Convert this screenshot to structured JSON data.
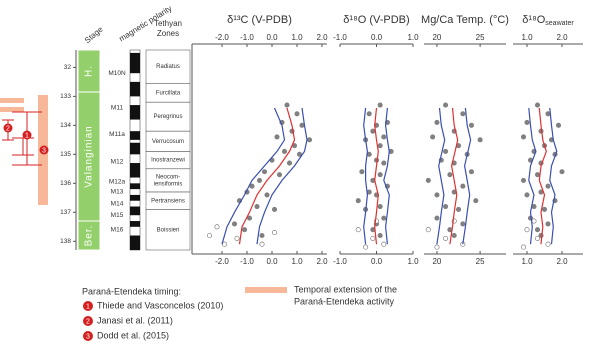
{
  "stratigraphy": {
    "stage_header": "Stage",
    "polarity_header": "magnetic polarity",
    "zones_header": [
      "Tethyan",
      "Zones"
    ],
    "ylim": [
      131.4,
      138.3
    ],
    "yticks": [
      {
        "value": 132,
        "label": "32"
      },
      133,
      134,
      135,
      136,
      137,
      138
    ],
    "stages": [
      {
        "label": "H.",
        "from": 131.4,
        "to": 132.85
      },
      {
        "label": "Valanginian",
        "from": 132.85,
        "to": 137.3
      },
      {
        "label": "Ber.",
        "from": 137.3,
        "to": 138.3
      }
    ],
    "chrons": [
      {
        "label": "M10N",
        "age": 132.2
      },
      {
        "label": "M11",
        "age": 133.4
      },
      {
        "label": "M11a",
        "age": 134.3
      },
      {
        "label": "M12",
        "age": 135.25
      },
      {
        "label": "M12a",
        "age": 135.95
      },
      {
        "label": "M13",
        "age": 136.3
      },
      {
        "label": "M14",
        "age": 136.7
      },
      {
        "label": "M15",
        "age": 137.1
      },
      {
        "label": "M16",
        "age": 137.6
      }
    ],
    "normal_intervals": [
      [
        131.5,
        132.2
      ],
      [
        132.5,
        133.0
      ],
      [
        133.3,
        133.8
      ],
      [
        134.2,
        134.5
      ],
      [
        134.6,
        135.0
      ],
      [
        135.3,
        135.8
      ],
      [
        136.0,
        136.2
      ],
      [
        136.4,
        136.6
      ],
      [
        136.8,
        137.1
      ],
      [
        137.3,
        137.5
      ],
      [
        137.8,
        138.3
      ]
    ],
    "zones": [
      {
        "label": [
          "Radiatus"
        ],
        "from": 131.4,
        "to": 132.55
      },
      {
        "label": [
          "Furcillata"
        ],
        "from": 132.55,
        "to": 133.2
      },
      {
        "label": [
          "Peregrinus"
        ],
        "from": 133.2,
        "to": 134.2
      },
      {
        "label": [
          "Verrucosum"
        ],
        "from": 134.2,
        "to": 134.9
      },
      {
        "label": [
          "Inostranzewi"
        ],
        "from": 134.9,
        "to": 135.5
      },
      {
        "label": [
          "Neocom-",
          "iensiformis"
        ],
        "from": 135.5,
        "to": 136.3
      },
      {
        "label": [
          "Pertransiens"
        ],
        "from": 136.3,
        "to": 136.9
      },
      {
        "label": [
          "Boissieri"
        ],
        "from": 136.9,
        "to": 138.3
      }
    ]
  },
  "chart_data": [
    {
      "type": "scatter",
      "title": "δ¹³C (V-PDB)",
      "xlim": [
        -3.2,
        2.2
      ],
      "ylim": [
        131.4,
        138.3
      ],
      "xticks": [
        {
          "value": -2,
          "label": "-2.0"
        },
        {
          "value": -1,
          "label": "-1.0"
        },
        {
          "value": 0,
          "label": "0.0"
        },
        {
          "value": 1,
          "label": "1.0"
        },
        {
          "value": 2,
          "label": "2.0"
        }
      ],
      "series": [
        {
          "kind": "scatter",
          "marker": "filled",
          "color": "#808080",
          "x": [
            0.6,
            1.0,
            0.4,
            1.2,
            0.8,
            0.2,
            1.5,
            0.9,
            0.5,
            1.1,
            0.0,
            0.7,
            -0.3,
            0.3,
            -0.5,
            -0.8,
            -1.0,
            -0.2,
            -1.3,
            -0.6,
            0.1,
            -0.9,
            -1.5,
            -1.1,
            -0.4
          ],
          "y": [
            133.3,
            133.6,
            133.9,
            134.0,
            134.2,
            134.4,
            134.5,
            134.7,
            134.9,
            135.0,
            135.2,
            135.3,
            135.6,
            135.7,
            135.9,
            136.1,
            136.3,
            136.4,
            136.6,
            136.8,
            136.9,
            137.2,
            137.4,
            137.6,
            137.8
          ]
        },
        {
          "kind": "scatter",
          "marker": "open",
          "color": "#808080",
          "x": [
            -2.5,
            -1.9,
            -1.4,
            -0.4,
            -2.2,
            0.1
          ],
          "y": [
            137.8,
            138.1,
            137.9,
            138.1,
            137.5,
            137.7
          ]
        },
        {
          "kind": "line",
          "color": "#3a4fb0",
          "x": [
            -2.0,
            -1.8,
            -1.5,
            -1.1,
            -0.8,
            -0.3,
            0.2,
            0.5,
            0.4,
            0.1
          ],
          "y": [
            138.1,
            137.5,
            137.0,
            136.4,
            135.9,
            135.4,
            134.9,
            134.5,
            134.0,
            133.4
          ]
        },
        {
          "kind": "line",
          "color": "#3a4fb0",
          "x": [
            -0.6,
            -0.5,
            -0.3,
            0.0,
            0.4,
            0.9,
            1.3,
            1.4,
            1.3,
            1.2
          ],
          "y": [
            138.1,
            137.5,
            137.0,
            136.4,
            135.9,
            135.4,
            134.9,
            134.5,
            134.0,
            133.4
          ]
        },
        {
          "kind": "line",
          "color": "#e03030",
          "x": [
            -1.3,
            -1.2,
            -0.9,
            -0.6,
            -0.2,
            0.3,
            0.7,
            0.9,
            0.8,
            0.6
          ],
          "y": [
            138.1,
            137.5,
            137.0,
            136.4,
            135.9,
            135.4,
            134.9,
            134.5,
            134.0,
            133.4
          ]
        }
      ]
    },
    {
      "type": "scatter",
      "title": "δ¹⁸O (V-PDB)",
      "xlim": [
        -1.0,
        1.0
      ],
      "ylim": [
        131.4,
        138.3
      ],
      "xticks": [
        {
          "value": -1,
          "label": "-1.0"
        },
        {
          "value": 0,
          "label": "0.0"
        },
        {
          "value": 1,
          "label": "1.0"
        }
      ],
      "series": [
        {
          "kind": "scatter",
          "marker": "filled",
          "color": "#808080",
          "x": [
            0.1,
            -0.2,
            0.3,
            0.0,
            -0.1,
            0.2,
            -0.3,
            0.1,
            0.4,
            -0.2,
            0.0,
            0.2,
            -0.4,
            0.1,
            -0.1,
            0.3,
            -0.2,
            0.0,
            -0.5,
            0.1,
            -0.3,
            0.2,
            0.0,
            -0.1,
            0.1
          ],
          "y": [
            133.3,
            133.6,
            133.9,
            134.0,
            134.2,
            134.4,
            134.5,
            134.7,
            134.9,
            135.0,
            135.2,
            135.3,
            135.6,
            135.7,
            135.9,
            136.1,
            136.3,
            136.4,
            136.6,
            136.8,
            136.9,
            137.2,
            137.4,
            137.6,
            137.8
          ]
        },
        {
          "kind": "scatter",
          "marker": "open",
          "color": "#808080",
          "x": [
            -0.5,
            -0.1,
            0.2,
            -0.3,
            0.0
          ],
          "y": [
            137.6,
            137.9,
            138.1,
            138.2,
            137.3
          ]
        },
        {
          "kind": "line",
          "color": "#3a4fb0",
          "x": [
            -0.3,
            -0.35,
            -0.3,
            -0.25,
            -0.3,
            -0.3,
            -0.25,
            -0.3,
            -0.35,
            -0.3
          ],
          "y": [
            138.1,
            137.5,
            137.0,
            136.4,
            135.9,
            135.4,
            134.9,
            134.5,
            134.0,
            133.4
          ]
        },
        {
          "kind": "line",
          "color": "#3a4fb0",
          "x": [
            0.3,
            0.25,
            0.3,
            0.35,
            0.2,
            0.3,
            0.35,
            0.3,
            0.25,
            0.3
          ],
          "y": [
            138.1,
            137.5,
            137.0,
            136.4,
            135.9,
            135.4,
            134.9,
            134.5,
            134.0,
            133.4
          ]
        },
        {
          "kind": "line",
          "color": "#e03030",
          "x": [
            0.0,
            -0.05,
            0.0,
            0.05,
            -0.05,
            0.0,
            0.05,
            0.0,
            -0.05,
            0.0
          ],
          "y": [
            138.1,
            137.5,
            137.0,
            136.4,
            135.9,
            135.4,
            134.9,
            134.5,
            134.0,
            133.4
          ]
        }
      ]
    },
    {
      "type": "scatter",
      "title": "Mg/Ca Temp. (°C)",
      "xlim": [
        18.5,
        28
      ],
      "ylim": [
        131.4,
        138.3
      ],
      "xticks": [
        20,
        25
      ],
      "series": [
        {
          "kind": "scatter",
          "marker": "filled",
          "color": "#808080",
          "x": [
            21,
            23,
            20,
            24,
            22,
            19.5,
            25,
            22.5,
            21,
            23.5,
            20.5,
            22,
            24,
            21.5,
            19,
            23,
            22,
            20,
            24.5,
            21,
            22.5,
            20,
            23,
            21.5,
            22
          ],
          "y": [
            133.3,
            133.6,
            133.9,
            134.0,
            134.2,
            134.4,
            134.5,
            134.7,
            134.9,
            135.0,
            135.2,
            135.3,
            135.6,
            135.7,
            135.9,
            136.1,
            136.3,
            136.4,
            136.6,
            136.8,
            136.9,
            137.2,
            137.4,
            137.6,
            137.8
          ]
        },
        {
          "kind": "scatter",
          "marker": "open",
          "color": "#808080",
          "x": [
            19,
            21,
            23,
            20,
            22
          ],
          "y": [
            137.6,
            137.9,
            138.1,
            138.2,
            137.3
          ]
        },
        {
          "kind": "line",
          "color": "#3a4fb0",
          "x": [
            20,
            20.3,
            20.5,
            20.8,
            20.5,
            20.2,
            20.6,
            20.9,
            20.5,
            20.3
          ],
          "y": [
            138.1,
            137.5,
            137.0,
            136.4,
            135.9,
            135.4,
            134.9,
            134.5,
            134.0,
            133.4
          ]
        },
        {
          "kind": "line",
          "color": "#3a4fb0",
          "x": [
            23,
            23.3,
            23.5,
            23.8,
            23.5,
            23.2,
            23.6,
            23.9,
            23.5,
            23.3
          ],
          "y": [
            138.1,
            137.5,
            137.0,
            136.4,
            135.9,
            135.4,
            134.9,
            134.5,
            134.0,
            133.4
          ]
        },
        {
          "kind": "line",
          "color": "#e03030",
          "x": [
            21.5,
            21.8,
            22,
            22.3,
            22,
            21.7,
            22.1,
            22.4,
            22,
            21.8
          ],
          "y": [
            138.1,
            137.5,
            137.0,
            136.4,
            135.9,
            135.4,
            134.9,
            134.5,
            134.0,
            133.4
          ]
        }
      ]
    },
    {
      "type": "scatter",
      "title": "δ¹⁸O",
      "title_subscript": "seawater",
      "xlim": [
        0.6,
        2.6
      ],
      "ylim": [
        131.4,
        138.3
      ],
      "xticks": [
        {
          "value": 1,
          "label": "1.0"
        },
        {
          "value": 2,
          "label": "2.0"
        }
      ],
      "series": [
        {
          "kind": "scatter",
          "marker": "filled",
          "color": "#808080",
          "x": [
            1.3,
            1.6,
            1.0,
            1.9,
            1.4,
            0.9,
            1.7,
            1.5,
            1.2,
            1.8,
            1.1,
            1.4,
            2.0,
            1.3,
            0.9,
            1.6,
            1.4,
            1.0,
            1.8,
            1.2,
            1.5,
            1.1,
            1.6,
            1.3,
            1.4
          ],
          "y": [
            133.3,
            133.6,
            133.9,
            134.0,
            134.2,
            134.4,
            134.5,
            134.7,
            134.9,
            135.0,
            135.2,
            135.3,
            135.6,
            135.7,
            135.9,
            136.1,
            136.3,
            136.4,
            136.6,
            136.8,
            136.9,
            137.2,
            137.4,
            137.6,
            137.8
          ]
        },
        {
          "kind": "scatter",
          "marker": "open",
          "color": "#808080",
          "x": [
            1.0,
            1.3,
            1.6,
            0.9,
            1.2
          ],
          "y": [
            137.6,
            137.9,
            138.1,
            138.2,
            137.3
          ]
        },
        {
          "kind": "line",
          "color": "#3a4fb0",
          "x": [
            1.1,
            1.15,
            1.1,
            1.2,
            1.05,
            1.1,
            1.25,
            1.15,
            1.1,
            1.05
          ],
          "y": [
            138.1,
            137.5,
            137.0,
            136.4,
            135.9,
            135.4,
            134.9,
            134.5,
            134.0,
            133.4
          ]
        },
        {
          "kind": "line",
          "color": "#3a4fb0",
          "x": [
            1.7,
            1.75,
            1.7,
            1.8,
            1.65,
            1.7,
            1.85,
            1.75,
            1.7,
            1.65
          ],
          "y": [
            138.1,
            137.5,
            137.0,
            136.4,
            135.9,
            135.4,
            134.9,
            134.5,
            134.0,
            133.4
          ]
        },
        {
          "kind": "line",
          "color": "#e03030",
          "x": [
            1.4,
            1.45,
            1.4,
            1.5,
            1.35,
            1.4,
            1.55,
            1.45,
            1.4,
            1.35
          ],
          "y": [
            138.1,
            137.5,
            137.0,
            136.4,
            135.9,
            135.4,
            134.9,
            134.5,
            134.0,
            133.4
          ]
        }
      ]
    }
  ],
  "legend": {
    "title": "Paraná-Etendeka timing:",
    "items": [
      {
        "number": "1",
        "label": "Thiede and Vasconcelos (2010)"
      },
      {
        "number": "2",
        "label": "Janasi et al. (2011)"
      },
      {
        "number": "3",
        "label": "Dodd et al. (2015)"
      }
    ],
    "extension_label": [
      "Temporal extension of the",
      "Paraná-Etendeka activity"
    ]
  }
}
